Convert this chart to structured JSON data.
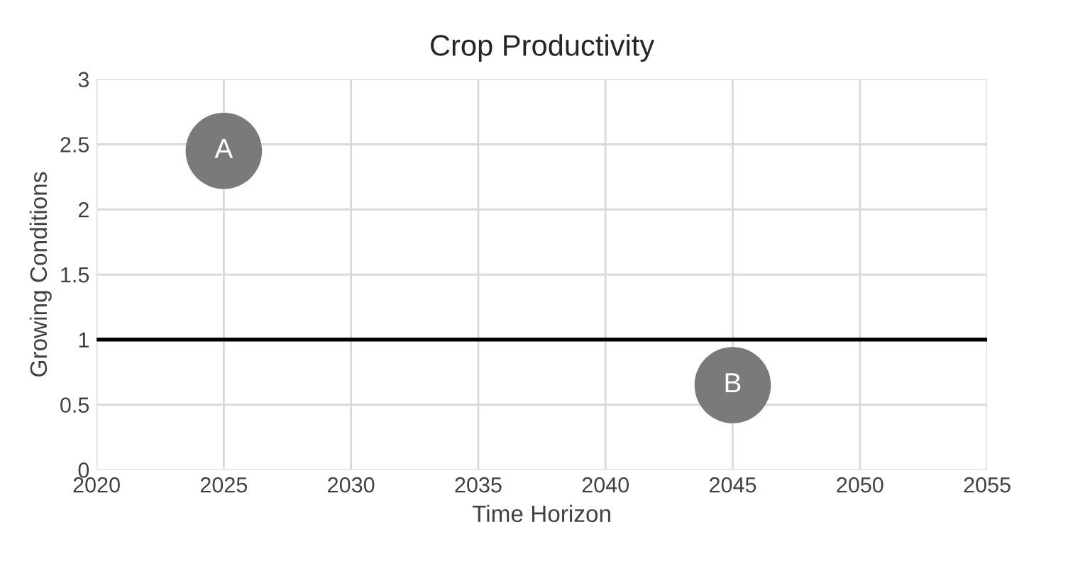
{
  "chart_data": {
    "type": "scatter",
    "title": "Crop Productivity",
    "xlabel": "Time Horizon",
    "ylabel": "Growing Conditions",
    "x": [
      2025,
      2045
    ],
    "series": [
      {
        "color": "#7a7a7a",
        "values": [
          2.45,
          0.65
        ]
      }
    ],
    "annotations": [
      {
        "text": "A",
        "x": 2025,
        "y": 2.45
      },
      {
        "text": "B",
        "x": 2045,
        "y": 0.65
      }
    ],
    "ref_lines": [
      {
        "axis": "y",
        "value": 1,
        "color": "#000000"
      }
    ],
    "xlim": [
      2020,
      2055
    ],
    "xticks": [
      2020,
      2025,
      2030,
      2035,
      2040,
      2045,
      2050,
      2055
    ],
    "ylim": [
      0,
      3
    ],
    "yticks": [
      0,
      0.5,
      1,
      1.5,
      2,
      2.5,
      3
    ],
    "grid": true,
    "marker": "circle",
    "legend": false
  }
}
